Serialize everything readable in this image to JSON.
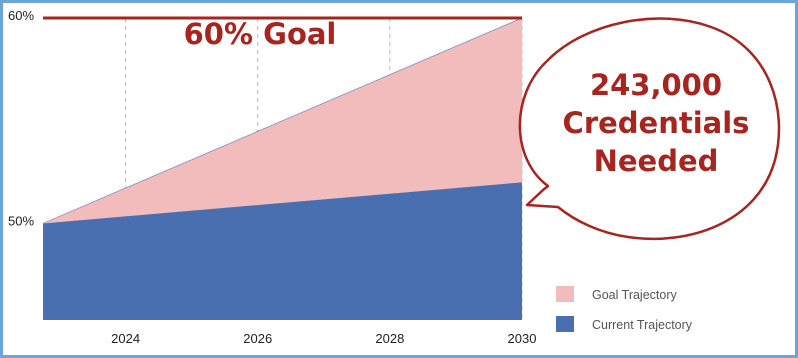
{
  "chart_data": {
    "type": "area",
    "title": "60% Goal",
    "x": [
      2022.75,
      2030
    ],
    "xlim": [
      2022.75,
      2030
    ],
    "ylim": [
      45.3,
      60
    ],
    "xticks": [
      "2024",
      "2026",
      "2028",
      "2030"
    ],
    "xtick_values": [
      2024,
      2026,
      2028,
      2030
    ],
    "yticks": [
      "50%",
      "60%"
    ],
    "ytick_values": [
      50,
      60
    ],
    "grid": "vertical dashed",
    "goal_line": {
      "value": 60,
      "color": "#a8241e"
    },
    "series": [
      {
        "name": "Goal Trajectory",
        "values": [
          50,
          60
        ],
        "color": "#f3bcbc"
      },
      {
        "name": "Current Trajectory",
        "values": [
          50,
          52
        ],
        "color": "#4a6fb0"
      }
    ],
    "legend": {
      "position": "bottom-right"
    },
    "annotation": {
      "lines": [
        "243,000",
        "Credentials",
        "Needed"
      ],
      "color": "#a8241e"
    }
  }
}
